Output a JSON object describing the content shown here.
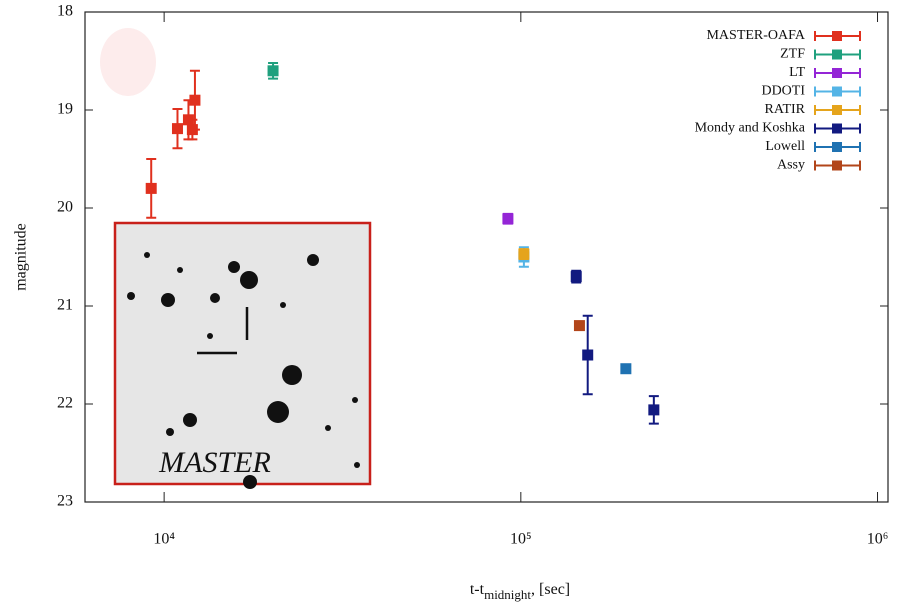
{
  "chart_data": {
    "type": "scatter",
    "y_label": "magnitude",
    "x_label": {
      "main": "t-t",
      "sub": "midnight",
      "tail": ", [sec]"
    },
    "annotations": [
      "MASTER"
    ],
    "log_x": true,
    "y_inverted": true,
    "legend": "top-right",
    "xlim": [
      6000,
      1070000
    ],
    "xticks": [
      {
        "value": 10000,
        "label": "10⁴"
      },
      {
        "value": 100000,
        "label": "10⁵"
      },
      {
        "value": 1000000,
        "label": "10⁶"
      }
    ],
    "ylim": [
      18,
      23
    ],
    "yticks": [
      18,
      19,
      20,
      21,
      22,
      23
    ],
    "series": [
      {
        "name": "MASTER-OAFA",
        "color": "#e0301e",
        "x": [
          9200,
          10900,
          11700,
          12000,
          12200
        ],
        "values": [
          19.8,
          19.19,
          19.1,
          19.2,
          18.9
        ],
        "errors": [
          0.3,
          0.2,
          0.2,
          0.1,
          0.3
        ]
      },
      {
        "name": "ZTF",
        "color": "#1fa07e",
        "x": [
          20200
        ],
        "values": [
          18.6
        ],
        "errors": [
          0.08
        ]
      },
      {
        "name": "LT",
        "color": "#9425d6",
        "x": [
          92000
        ],
        "values": [
          20.11
        ],
        "errors": [
          0.05
        ]
      },
      {
        "name": "DDOTI",
        "color": "#54b4e6",
        "x": [
          102000
        ],
        "values": [
          20.5
        ],
        "errors": [
          0.1
        ]
      },
      {
        "name": "RATIR",
        "color": "#e5a41c",
        "x": [
          102000
        ],
        "values": [
          20.47
        ],
        "errors": [
          0.05
        ]
      },
      {
        "name": "Mondy and Koshka",
        "color": "#121a80",
        "x": [
          143000,
          154000,
          236000
        ],
        "values": [
          20.7,
          21.5,
          22.06
        ],
        "errors": [
          0.06,
          0.4,
          0.14
        ]
      },
      {
        "name": "Lowell",
        "color": "#1f72b2",
        "x": [
          197000
        ],
        "values": [
          21.64
        ],
        "errors": [
          0.03
        ]
      },
      {
        "name": "Assy",
        "color": "#b2451a",
        "x": [
          146000
        ],
        "values": [
          21.2
        ],
        "errors": [
          0.04
        ]
      }
    ]
  }
}
